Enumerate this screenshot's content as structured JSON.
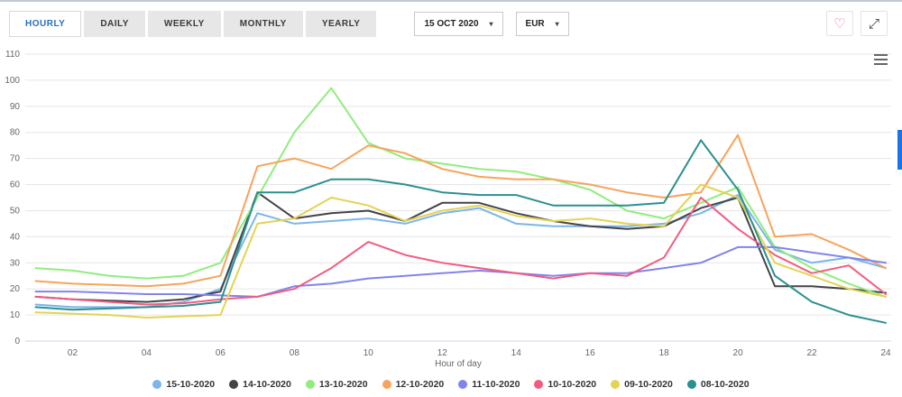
{
  "header": {
    "tabs": [
      {
        "label": "HOURLY",
        "active": true
      },
      {
        "label": "DAILY",
        "active": false
      },
      {
        "label": "WEEKLY",
        "active": false
      },
      {
        "label": "MONTHLY",
        "active": false
      },
      {
        "label": "YEARLY",
        "active": false
      }
    ],
    "date_dropdown": {
      "value": "15 OCT 2020",
      "icon": "caret-down"
    },
    "currency_dropdown": {
      "value": "EUR",
      "icon": "caret-down"
    },
    "actions": {
      "favorite_icon": "heart-outline",
      "fullscreen_icon": "expand-arrows"
    }
  },
  "glyphs": {
    "heart": "♡",
    "expand": "⤢",
    "caret": "▾"
  },
  "chart_menu_icon": "hamburger",
  "colors": {
    "accent_blue": "#2a6fbb",
    "tab_background": "#e7e7e7",
    "grid": "#e6e6e6",
    "axis_text": "#666666",
    "axis_line": "#ccd6eb",
    "scroll_indicator": "#1a73e8",
    "heart": "#ef6a8b"
  },
  "chart_data": {
    "type": "line",
    "xlabel": "Hour of day",
    "ylabel": "",
    "ylim": [
      0,
      110
    ],
    "y_tick_step": 10,
    "grid": "horizontal",
    "legend_position": "bottom",
    "x": [
      1,
      2,
      3,
      4,
      5,
      6,
      7,
      8,
      9,
      10,
      11,
      12,
      13,
      14,
      15,
      16,
      17,
      18,
      19,
      20,
      21,
      22,
      23,
      24
    ],
    "x_tick_labels": [
      "02",
      "04",
      "06",
      "08",
      "10",
      "12",
      "14",
      "16",
      "18",
      "20",
      "22",
      "24"
    ],
    "series": [
      {
        "name": "15-10-2020",
        "color": "#7cb5ec",
        "values": [
          14,
          13,
          13,
          13,
          15,
          20,
          49,
          45,
          46,
          47,
          45,
          49,
          51,
          45,
          44,
          44,
          44,
          45,
          49,
          56,
          35,
          30,
          32,
          28
        ]
      },
      {
        "name": "14-10-2020",
        "color": "#434348",
        "values": [
          17,
          16,
          15.5,
          15,
          16,
          19,
          57,
          47,
          49,
          50,
          46,
          53,
          53,
          49,
          46,
          44,
          43,
          44,
          51,
          55,
          21,
          21,
          20,
          18.5
        ]
      },
      {
        "name": "13-10-2020",
        "color": "#90ed7d",
        "values": [
          28,
          27,
          25,
          24,
          25,
          30,
          55,
          80,
          97,
          76,
          70,
          68,
          66,
          65,
          62,
          58,
          50,
          47,
          53,
          59,
          36,
          28,
          22,
          17
        ]
      },
      {
        "name": "12-10-2020",
        "color": "#f7a35c",
        "values": [
          23,
          22,
          21.5,
          21,
          22,
          25,
          67,
          70,
          66,
          75,
          72,
          66,
          63,
          62,
          62,
          60,
          57,
          55,
          57,
          79,
          40,
          41,
          35,
          28
        ]
      },
      {
        "name": "11-10-2020",
        "color": "#8085e9",
        "values": [
          19,
          19,
          18.5,
          18,
          18,
          17.5,
          17,
          21,
          22,
          24,
          25,
          26,
          27,
          26,
          25,
          26,
          26,
          28,
          30,
          36,
          36,
          34,
          32,
          30
        ]
      },
      {
        "name": "10-10-2020",
        "color": "#f15c80",
        "values": [
          17,
          16,
          15,
          14,
          14.5,
          16,
          17,
          20,
          28,
          38,
          33,
          30,
          28,
          26,
          24,
          26,
          25,
          32,
          55,
          43,
          33,
          26,
          29,
          18
        ]
      },
      {
        "name": "09-10-2020",
        "color": "#e4d354",
        "values": [
          11,
          10.5,
          10,
          9,
          9.5,
          10,
          45,
          47,
          55,
          52,
          46,
          50,
          52,
          48,
          46,
          47,
          45,
          44,
          60,
          55,
          30,
          25,
          20,
          17
        ]
      },
      {
        "name": "08-10-2020",
        "color": "#2b908f",
        "values": [
          13,
          12,
          12.5,
          13,
          13.5,
          15,
          57,
          57,
          62,
          62,
          60,
          57,
          56,
          56,
          52,
          52,
          52,
          53,
          77,
          58,
          25,
          15,
          10,
          7
        ]
      }
    ]
  }
}
